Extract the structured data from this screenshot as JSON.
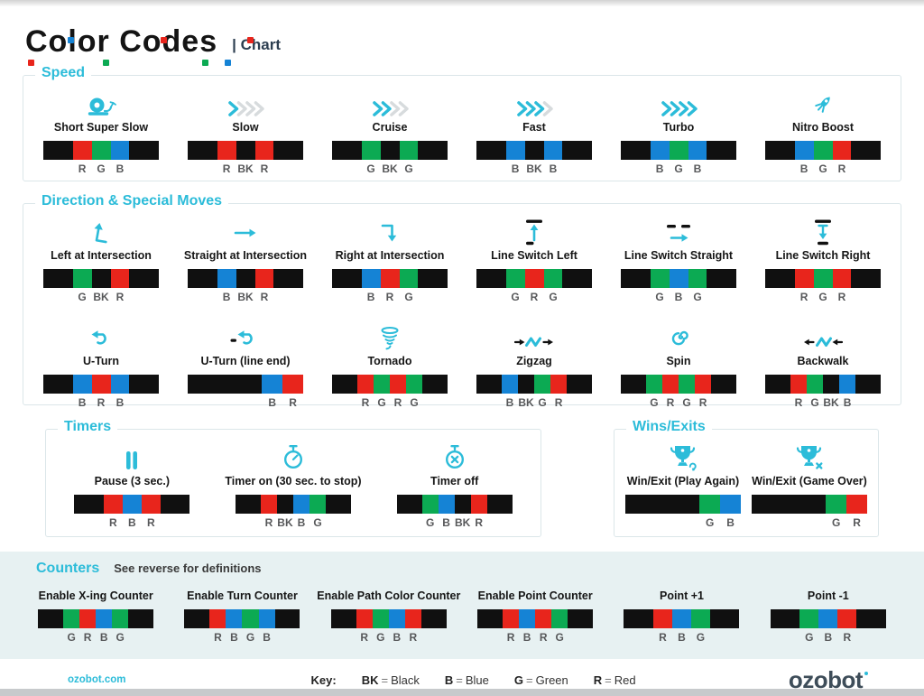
{
  "header": {
    "title": "Color Codes",
    "subtitle": "| Chart"
  },
  "colors": {
    "BK": "#101010",
    "R": "#e8251c",
    "G": "#0caa53",
    "B": "#1583d5",
    "accent": "#2cbcd9",
    "inactive": "#d7dbdd"
  },
  "sections": {
    "speed": {
      "title": "Speed",
      "items": [
        {
          "name": "Short Super Slow",
          "icon": "snail-icon",
          "segments": [
            "BK",
            "R",
            "G",
            "B",
            "BK"
          ]
        },
        {
          "name": "Slow",
          "icon": "speed-1-icon",
          "segments": [
            "BK",
            "R",
            "BK",
            "R",
            "BK"
          ]
        },
        {
          "name": "Cruise",
          "icon": "speed-2-icon",
          "segments": [
            "BK",
            "G",
            "BK",
            "G",
            "BK"
          ]
        },
        {
          "name": "Fast",
          "icon": "speed-3-icon",
          "segments": [
            "BK",
            "B",
            "BK",
            "B",
            "BK"
          ]
        },
        {
          "name": "Turbo",
          "icon": "speed-4-icon",
          "segments": [
            "BK",
            "B",
            "G",
            "B",
            "BK"
          ]
        },
        {
          "name": "Nitro Boost",
          "icon": "rocket-icon",
          "segments": [
            "BK",
            "B",
            "G",
            "R",
            "BK"
          ]
        }
      ]
    },
    "direction": {
      "title": "Direction & Special Moves",
      "items": [
        {
          "name": "Left at Intersection",
          "icon": "turn-left-icon",
          "segments": [
            "BK",
            "G",
            "BK",
            "R",
            "BK"
          ]
        },
        {
          "name": "Straight at Intersection",
          "icon": "arrow-right-icon",
          "segments": [
            "BK",
            "B",
            "BK",
            "R",
            "BK"
          ]
        },
        {
          "name": "Right at Intersection",
          "icon": "turn-right-icon",
          "segments": [
            "BK",
            "B",
            "R",
            "G",
            "BK"
          ]
        },
        {
          "name": "Line Switch Left",
          "icon": "line-switch-left-icon",
          "segments": [
            "BK",
            "G",
            "R",
            "G",
            "BK"
          ]
        },
        {
          "name": "Line Switch Straight",
          "icon": "line-switch-straight-icon",
          "segments": [
            "BK",
            "G",
            "B",
            "G",
            "BK"
          ]
        },
        {
          "name": "Line Switch Right",
          "icon": "line-switch-right-icon",
          "segments": [
            "BK",
            "R",
            "G",
            "R",
            "BK"
          ]
        },
        {
          "name": "U-Turn",
          "icon": "u-turn-icon",
          "segments": [
            "BK",
            "B",
            "R",
            "B",
            "BK"
          ]
        },
        {
          "name": "U-Turn (line end)",
          "icon": "u-turn-line-end-icon",
          "segments": [
            "BK",
            "B",
            "R"
          ]
        },
        {
          "name": "Tornado",
          "icon": "tornado-icon",
          "segments": [
            "BK",
            "R",
            "G",
            "R",
            "G",
            "BK"
          ]
        },
        {
          "name": "Zigzag",
          "icon": "zigzag-icon",
          "segments": [
            "BK",
            "B",
            "BK",
            "G",
            "R",
            "BK"
          ]
        },
        {
          "name": "Spin",
          "icon": "spin-icon",
          "segments": [
            "BK",
            "G",
            "R",
            "G",
            "R",
            "BK"
          ]
        },
        {
          "name": "Backwalk",
          "icon": "backwalk-icon",
          "segments": [
            "BK",
            "R",
            "G",
            "BK",
            "B",
            "BK"
          ]
        }
      ]
    },
    "timers": {
      "title": "Timers",
      "items": [
        {
          "name": "Pause (3 sec.)",
          "icon": "pause-icon",
          "segments": [
            "BK",
            "R",
            "B",
            "R",
            "BK"
          ]
        },
        {
          "name": "Timer on (30 sec. to stop)",
          "icon": "timer-on-icon",
          "segments": [
            "BK",
            "R",
            "BK",
            "B",
            "G",
            "BK"
          ]
        },
        {
          "name": "Timer off",
          "icon": "timer-off-icon",
          "segments": [
            "BK",
            "G",
            "B",
            "BK",
            "R",
            "BK"
          ]
        }
      ]
    },
    "wins": {
      "title": "Wins/Exits",
      "items": [
        {
          "name": "Win/Exit (Play Again)",
          "icon": "trophy-replay-icon",
          "segments": [
            "BK",
            "G",
            "B"
          ]
        },
        {
          "name": "Win/Exit (Game Over)",
          "icon": "trophy-gameover-icon",
          "segments": [
            "BK",
            "G",
            "R"
          ]
        }
      ]
    },
    "counters": {
      "title": "Counters",
      "note": "See reverse for definitions",
      "items": [
        {
          "name": "Enable X-ing Counter",
          "segments": [
            "BK",
            "G",
            "R",
            "B",
            "G",
            "BK"
          ]
        },
        {
          "name": "Enable Turn Counter",
          "segments": [
            "BK",
            "R",
            "B",
            "G",
            "B",
            "BK"
          ]
        },
        {
          "name": "Enable Path Color Counter",
          "segments": [
            "BK",
            "R",
            "G",
            "B",
            "R",
            "BK"
          ]
        },
        {
          "name": "Enable Point Counter",
          "segments": [
            "BK",
            "R",
            "B",
            "R",
            "G",
            "BK"
          ]
        },
        {
          "name": "Point +1",
          "segments": [
            "BK",
            "R",
            "B",
            "G",
            "BK"
          ]
        },
        {
          "name": "Point -1",
          "segments": [
            "BK",
            "G",
            "B",
            "R",
            "BK"
          ]
        }
      ]
    }
  },
  "footer": {
    "site": "ozobot.com",
    "key_label": "Key:",
    "key": [
      [
        "BK",
        "Black"
      ],
      [
        "B",
        "Blue"
      ],
      [
        "G",
        "Green"
      ],
      [
        "R",
        "Red"
      ]
    ],
    "logo": "ozobot"
  }
}
